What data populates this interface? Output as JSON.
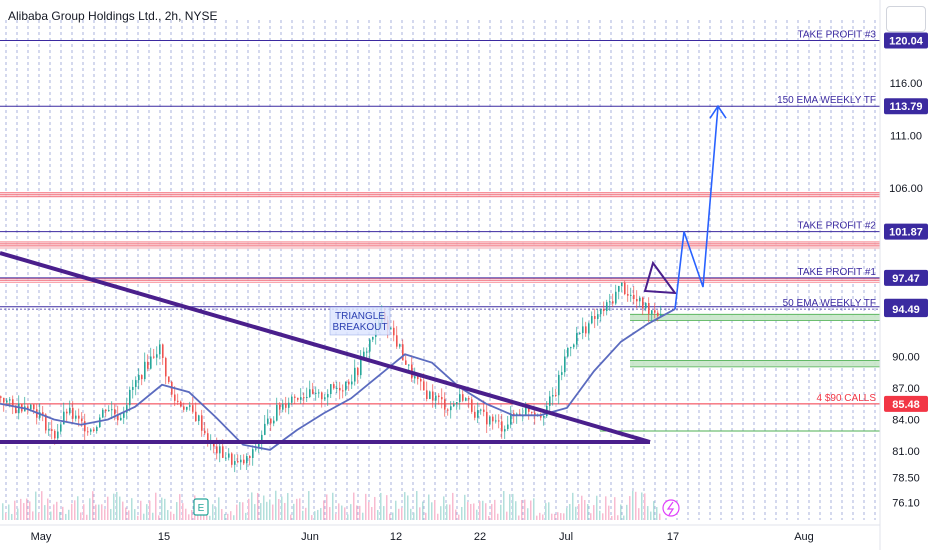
{
  "header": {
    "title": "Alibaba Group Holdings Ltd., 2h, NYSE"
  },
  "colors": {
    "purple": "#3b2aa0",
    "purple_dark": "#4a1f8c",
    "blue_arrow": "#2962ff",
    "red": "#f23645",
    "green": "#4caf50",
    "ema": "#5b6bbf",
    "candle_up": "#26a69a",
    "candle_down": "#ef5350"
  },
  "chart_data": {
    "type": "candlestick",
    "ylim": [
      76.1,
      121.5
    ],
    "y_ticks": [
      "116.00",
      "111.00",
      "106.00",
      "90.00",
      "87.00",
      "84.00",
      "81.00",
      "78.50",
      "76.10"
    ],
    "x_ticks": [
      "May",
      "15",
      "Jun",
      "12",
      "22",
      "Jul",
      "17",
      "Aug"
    ],
    "levels": [
      {
        "label": "TAKE PROFIT #3",
        "value": "120.04",
        "price": 120.04,
        "tag_color": "#3b2aa0"
      },
      {
        "label": "150 EMA WEEKLY TF",
        "value": "113.79",
        "price": 113.79,
        "tag_color": "#3b2aa0"
      },
      {
        "label": "TAKE PROFIT #2",
        "value": "101.87",
        "price": 101.87,
        "tag_color": "#3b2aa0"
      },
      {
        "label": "TAKE PROFIT #1",
        "value": "97.47",
        "price": 97.47,
        "tag_color": "#3b2aa0"
      },
      {
        "label": "",
        "value": "94.72",
        "price": 94.72,
        "tag_color": "#3b2aa0"
      },
      {
        "label": "50 EMA WEEKLY TF",
        "value": "94.49",
        "price": 94.49,
        "tag_color": "#3b2aa0"
      },
      {
        "label": "4 $90 CALLS",
        "value": "85.48",
        "price": 85.48,
        "tag_color": "#f23645"
      }
    ],
    "annotations": {
      "triangle_breakout": [
        "TRIANGLE",
        "BREAKOUT"
      ],
      "earnings": "E"
    },
    "price_path": [
      [
        0,
        86.2
      ],
      [
        0.02,
        85.0
      ],
      [
        0.04,
        85.6
      ],
      [
        0.06,
        84.4
      ],
      [
        0.08,
        82.3
      ],
      [
        0.1,
        84.8
      ],
      [
        0.12,
        83.6
      ],
      [
        0.14,
        83.1
      ],
      [
        0.16,
        85.3
      ],
      [
        0.18,
        84.2
      ],
      [
        0.2,
        87.0
      ],
      [
        0.22,
        89.1
      ],
      [
        0.24,
        91.0
      ],
      [
        0.26,
        86.0
      ],
      [
        0.28,
        85.2
      ],
      [
        0.3,
        84.0
      ],
      [
        0.32,
        81.3
      ],
      [
        0.34,
        80.6
      ],
      [
        0.36,
        79.6
      ],
      [
        0.38,
        80.4
      ],
      [
        0.4,
        83.3
      ],
      [
        0.42,
        85.0
      ],
      [
        0.44,
        86.1
      ],
      [
        0.46,
        86.5
      ],
      [
        0.48,
        86.0
      ],
      [
        0.5,
        86.8
      ],
      [
        0.52,
        87.3
      ],
      [
        0.54,
        88.6
      ],
      [
        0.56,
        91.6
      ],
      [
        0.58,
        94.0
      ],
      [
        0.6,
        91.3
      ],
      [
        0.62,
        88.5
      ],
      [
        0.64,
        86.7
      ],
      [
        0.66,
        86.0
      ],
      [
        0.68,
        85.1
      ],
      [
        0.7,
        86.3
      ],
      [
        0.72,
        84.6
      ],
      [
        0.74,
        84.0
      ],
      [
        0.76,
        83.3
      ],
      [
        0.78,
        84.5
      ],
      [
        0.8,
        85.0
      ],
      [
        0.82,
        84.6
      ],
      [
        0.84,
        86.4
      ],
      [
        0.86,
        91.0
      ],
      [
        0.88,
        92.4
      ],
      [
        0.9,
        93.6
      ],
      [
        0.92,
        94.8
      ],
      [
        0.94,
        96.8
      ],
      [
        0.96,
        95.3
      ],
      [
        0.98,
        94.6
      ],
      [
        1.0,
        94.2
      ]
    ],
    "ema_path": [
      [
        0,
        85.5
      ],
      [
        0.04,
        85.0
      ],
      [
        0.08,
        84.0
      ],
      [
        0.12,
        83.5
      ],
      [
        0.16,
        84.0
      ],
      [
        0.2,
        85.2
      ],
      [
        0.24,
        87.3
      ],
      [
        0.28,
        86.6
      ],
      [
        0.32,
        84.2
      ],
      [
        0.36,
        81.6
      ],
      [
        0.4,
        81.1
      ],
      [
        0.44,
        83.0
      ],
      [
        0.48,
        84.6
      ],
      [
        0.52,
        86.0
      ],
      [
        0.56,
        88.1
      ],
      [
        0.6,
        90.2
      ],
      [
        0.64,
        89.4
      ],
      [
        0.68,
        87.1
      ],
      [
        0.72,
        85.5
      ],
      [
        0.76,
        84.4
      ],
      [
        0.8,
        84.4
      ],
      [
        0.84,
        85.1
      ],
      [
        0.88,
        88.6
      ],
      [
        0.92,
        91.4
      ],
      [
        0.96,
        93.1
      ],
      [
        1.0,
        94.5
      ]
    ],
    "projection_path": [
      [
        94.49
      ],
      [
        101.87
      ],
      [
        96.6
      ],
      [
        113.79
      ]
    ]
  }
}
